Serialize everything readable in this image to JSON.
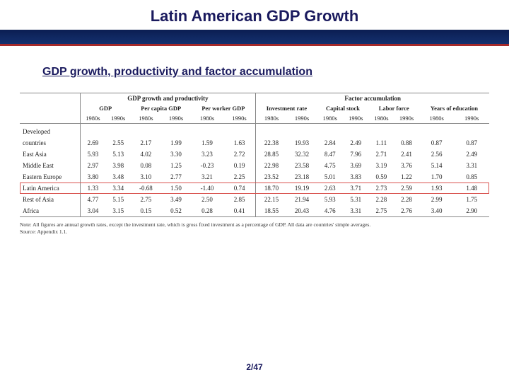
{
  "header": {
    "title": "Latin American GDP Growth"
  },
  "subtitle": "GDP growth, productivity and factor accumulation",
  "table": {
    "groups": [
      {
        "label": "GDP growth and productivity",
        "span": 6
      },
      {
        "label": "Factor accumulation",
        "span": 8
      }
    ],
    "columns": [
      "GDP",
      "Per capita GDP",
      "Per worker GDP",
      "Investment rate",
      "Capital stock",
      "Labor force",
      "Years of education"
    ],
    "decades": [
      "1980s",
      "1990s"
    ],
    "dev_label": "Developed",
    "countries_label": "countries",
    "rows": [
      {
        "label": "",
        "values": [
          "2.69",
          "2.55",
          "2.17",
          "1.99",
          "1.59",
          "1.63",
          "22.38",
          "19.93",
          "2.84",
          "2.49",
          "1.11",
          "0.88",
          "0.87",
          "0.87"
        ]
      },
      {
        "label": "East Asia",
        "values": [
          "5.93",
          "5.13",
          "4.02",
          "3.30",
          "3.23",
          "2.72",
          "28.85",
          "32.32",
          "8.47",
          "7.96",
          "2.71",
          "2.41",
          "2.56",
          "2.49"
        ]
      },
      {
        "label": "Middle East",
        "values": [
          "2.97",
          "3.98",
          "0.08",
          "1.25",
          "-0.23",
          "0.19",
          "22.98",
          "23.58",
          "4.75",
          "3.69",
          "3.19",
          "3.76",
          "5.14",
          "3.31"
        ]
      },
      {
        "label": "Eastern Europe",
        "values": [
          "3.80",
          "3.48",
          "3.10",
          "2.77",
          "3.21",
          "2.25",
          "23.52",
          "23.18",
          "5.01",
          "3.83",
          "0.59",
          "1.22",
          "1.70",
          "0.85"
        ]
      },
      {
        "label": "Latin America",
        "values": [
          "1.33",
          "3.34",
          "-0.68",
          "1.50",
          "-1.40",
          "0.74",
          "18.70",
          "19.19",
          "2.63",
          "3.71",
          "2.73",
          "2.59",
          "1.93",
          "1.48"
        ]
      },
      {
        "label": "Rest of Asia",
        "values": [
          "4.77",
          "5.15",
          "2.75",
          "3.49",
          "2.50",
          "2.85",
          "22.15",
          "21.94",
          "5.93",
          "5.31",
          "2.28",
          "2.28",
          "2.99",
          "1.75"
        ]
      },
      {
        "label": "Africa",
        "values": [
          "3.04",
          "3.15",
          "0.15",
          "0.52",
          "0.28",
          "0.41",
          "18.55",
          "20.43",
          "4.76",
          "3.31",
          "2.75",
          "2.76",
          "3.40",
          "2.90"
        ]
      }
    ],
    "highlight_row": 4
  },
  "note_line1": "Note: All figures are annual growth rates, except the investment rate, which is gross fixed investment as a percentage of GDP. All data are countries' simple averages.",
  "note_line2": "Source: Appendix 1.1.",
  "page": "2/47"
}
